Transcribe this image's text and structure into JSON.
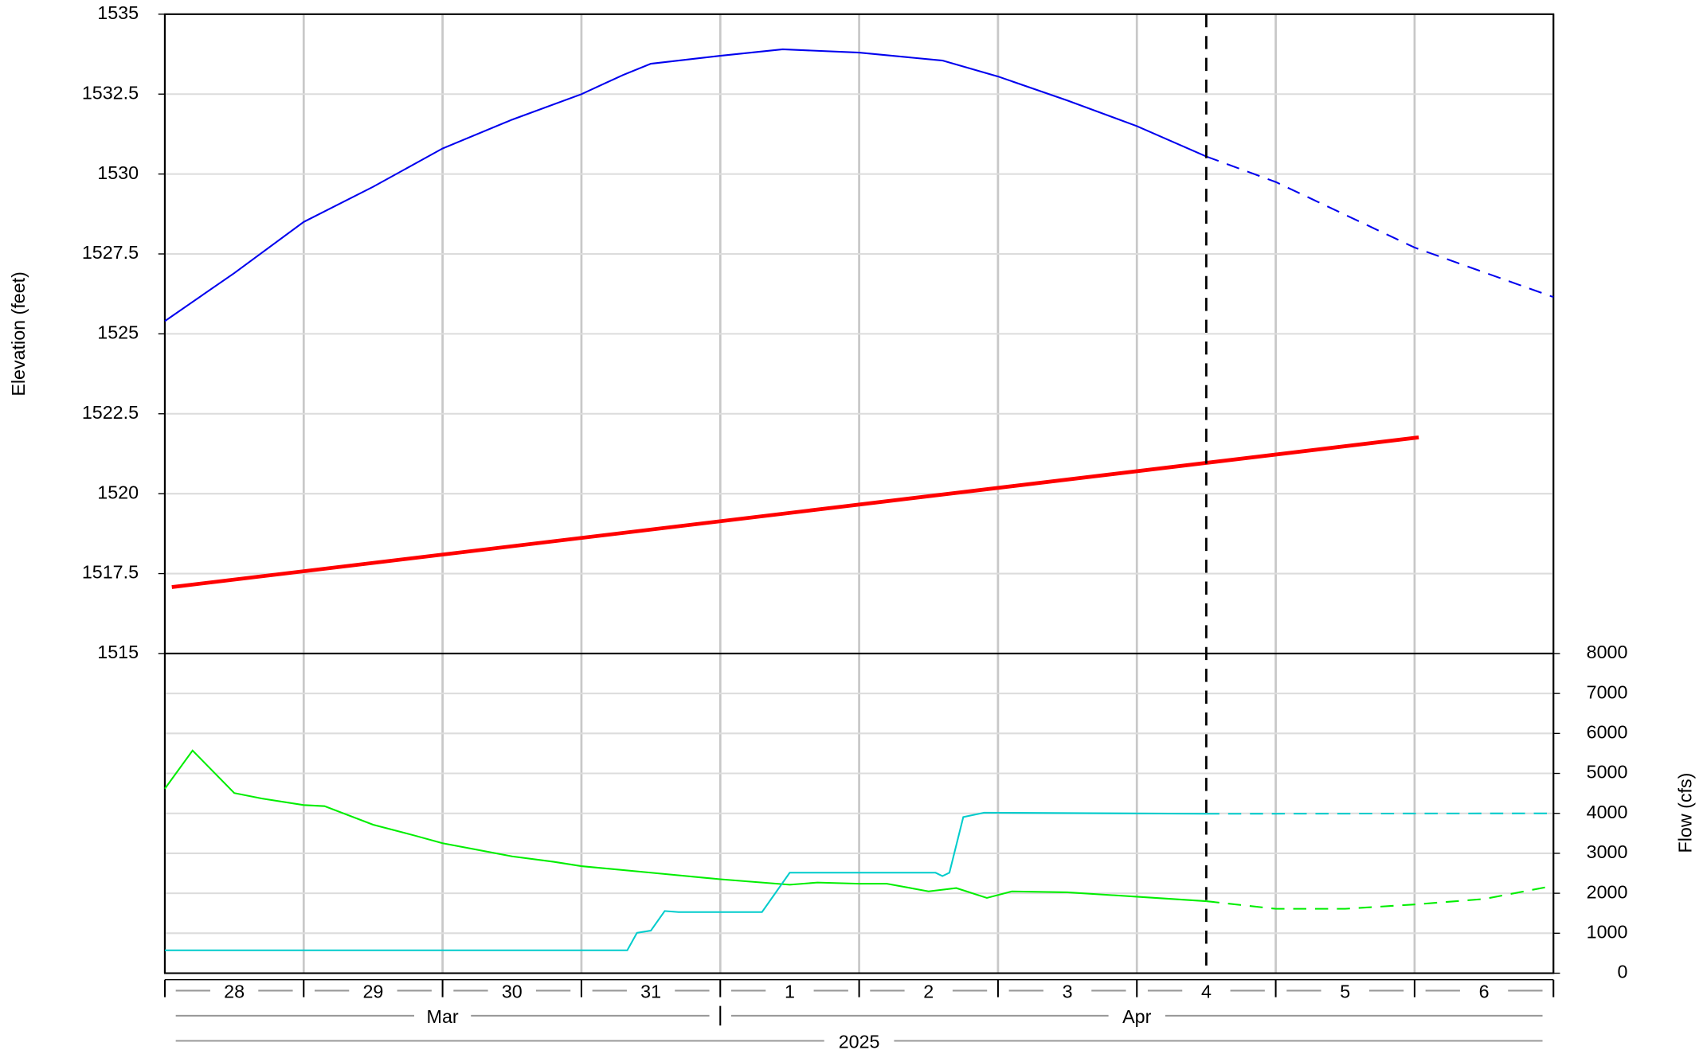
{
  "chart_data": {
    "type": "line",
    "ylabel": "Elevation (feet)",
    "y2label": "Flow (cfs)",
    "xlim": [
      0,
      10
    ],
    "xgrid": [
      0,
      1,
      2,
      3,
      4,
      5,
      6,
      7,
      8,
      9,
      10
    ],
    "xticks": [
      {
        "value": 0.5,
        "label": "28"
      },
      {
        "value": 1.5,
        "label": "29"
      },
      {
        "value": 2.5,
        "label": "30"
      },
      {
        "value": 3.5,
        "label": "31"
      },
      {
        "value": 4.5,
        "label": "1"
      },
      {
        "value": 5.5,
        "label": "2"
      },
      {
        "value": 6.5,
        "label": "3"
      },
      {
        "value": 7.5,
        "label": "4"
      },
      {
        "value": 8.5,
        "label": "5"
      },
      {
        "value": 9.5,
        "label": "6"
      }
    ],
    "months": [
      {
        "label": "Mar",
        "start": 0,
        "end": 4
      },
      {
        "label": "Apr",
        "start": 4,
        "end": 10
      }
    ],
    "year": "2025",
    "ylim": [
      1515,
      1535
    ],
    "yticks": [
      1515,
      1517.5,
      1520,
      1522.5,
      1525,
      1527.5,
      1530,
      1532.5,
      1535
    ],
    "y2lim": [
      0,
      8000
    ],
    "y2ticks": [
      0,
      1000,
      2000,
      3000,
      4000,
      5000,
      6000,
      7000,
      8000
    ],
    "grid": true,
    "forecast_start": 7.5,
    "series": [
      {
        "color": "#0000ee",
        "dashed": false,
        "width": 1.5,
        "axis": "y",
        "x": [
          0,
          0.5,
          1,
          1.5,
          2,
          2.5,
          3,
          3.3,
          3.5,
          4,
          4.45,
          5,
          5.6,
          6,
          6.5,
          7,
          7.5
        ],
        "values": [
          1525.4,
          1526.9,
          1528.5,
          1529.6,
          1530.8,
          1531.7,
          1532.5,
          1533.1,
          1533.45,
          1533.7,
          1533.9,
          1533.8,
          1533.55,
          1533.05,
          1532.3,
          1531.5,
          1530.55
        ]
      },
      {
        "color": "#0000ee",
        "dashed": true,
        "width": 1.5,
        "axis": "y",
        "x": [
          7.5,
          8,
          9,
          10
        ],
        "values": [
          1530.55,
          1529.75,
          1527.7,
          1526.15
        ]
      },
      {
        "color": "#ff0000",
        "dashed": false,
        "width": 3.5,
        "axis": "y",
        "x": [
          0.05,
          9.03
        ],
        "values": [
          1517.08,
          1521.76
        ]
      },
      {
        "color": "#00ee00",
        "dashed": false,
        "width": 1.5,
        "axis": "y2",
        "x": [
          0,
          0.2,
          0.5,
          0.7,
          1,
          1.15,
          1.5,
          1.8,
          2,
          2.5,
          2.8,
          3,
          3.5,
          4,
          4.5,
          4.7,
          5,
          5.2,
          5.5,
          5.7,
          5.92,
          6.1,
          6.5,
          7,
          7.5
        ],
        "values": [
          4617,
          5574,
          4508,
          4370,
          4208,
          4180,
          3716,
          3443,
          3251,
          2923,
          2787,
          2678,
          2514,
          2350,
          2213,
          2268,
          2240,
          2240,
          2049,
          2131,
          1885,
          2049,
          2022,
          1913,
          1803
        ]
      },
      {
        "color": "#00ee00",
        "dashed": true,
        "width": 1.5,
        "axis": "y2",
        "x": [
          7.5,
          8,
          8.5,
          9,
          9.5,
          10
        ],
        "values": [
          1803,
          1612,
          1612,
          1721,
          1858,
          2186
        ]
      },
      {
        "color": "#00cccc",
        "dashed": false,
        "width": 1.5,
        "axis": "y2",
        "x": [
          0,
          3.33,
          3.4,
          3.5,
          3.6,
          3.7,
          4.3,
          4.5,
          5,
          5.55,
          5.6,
          5.65,
          5.75,
          5.9,
          7.5
        ],
        "values": [
          574,
          574,
          1011,
          1066,
          1557,
          1530,
          1530,
          2514,
          2514,
          2514,
          2430,
          2514,
          3907,
          4016,
          3989
        ]
      },
      {
        "color": "#00cccc",
        "dashed": true,
        "width": 1.5,
        "axis": "y2",
        "x": [
          7.5,
          10
        ],
        "values": [
          3989,
          4000
        ]
      }
    ]
  }
}
